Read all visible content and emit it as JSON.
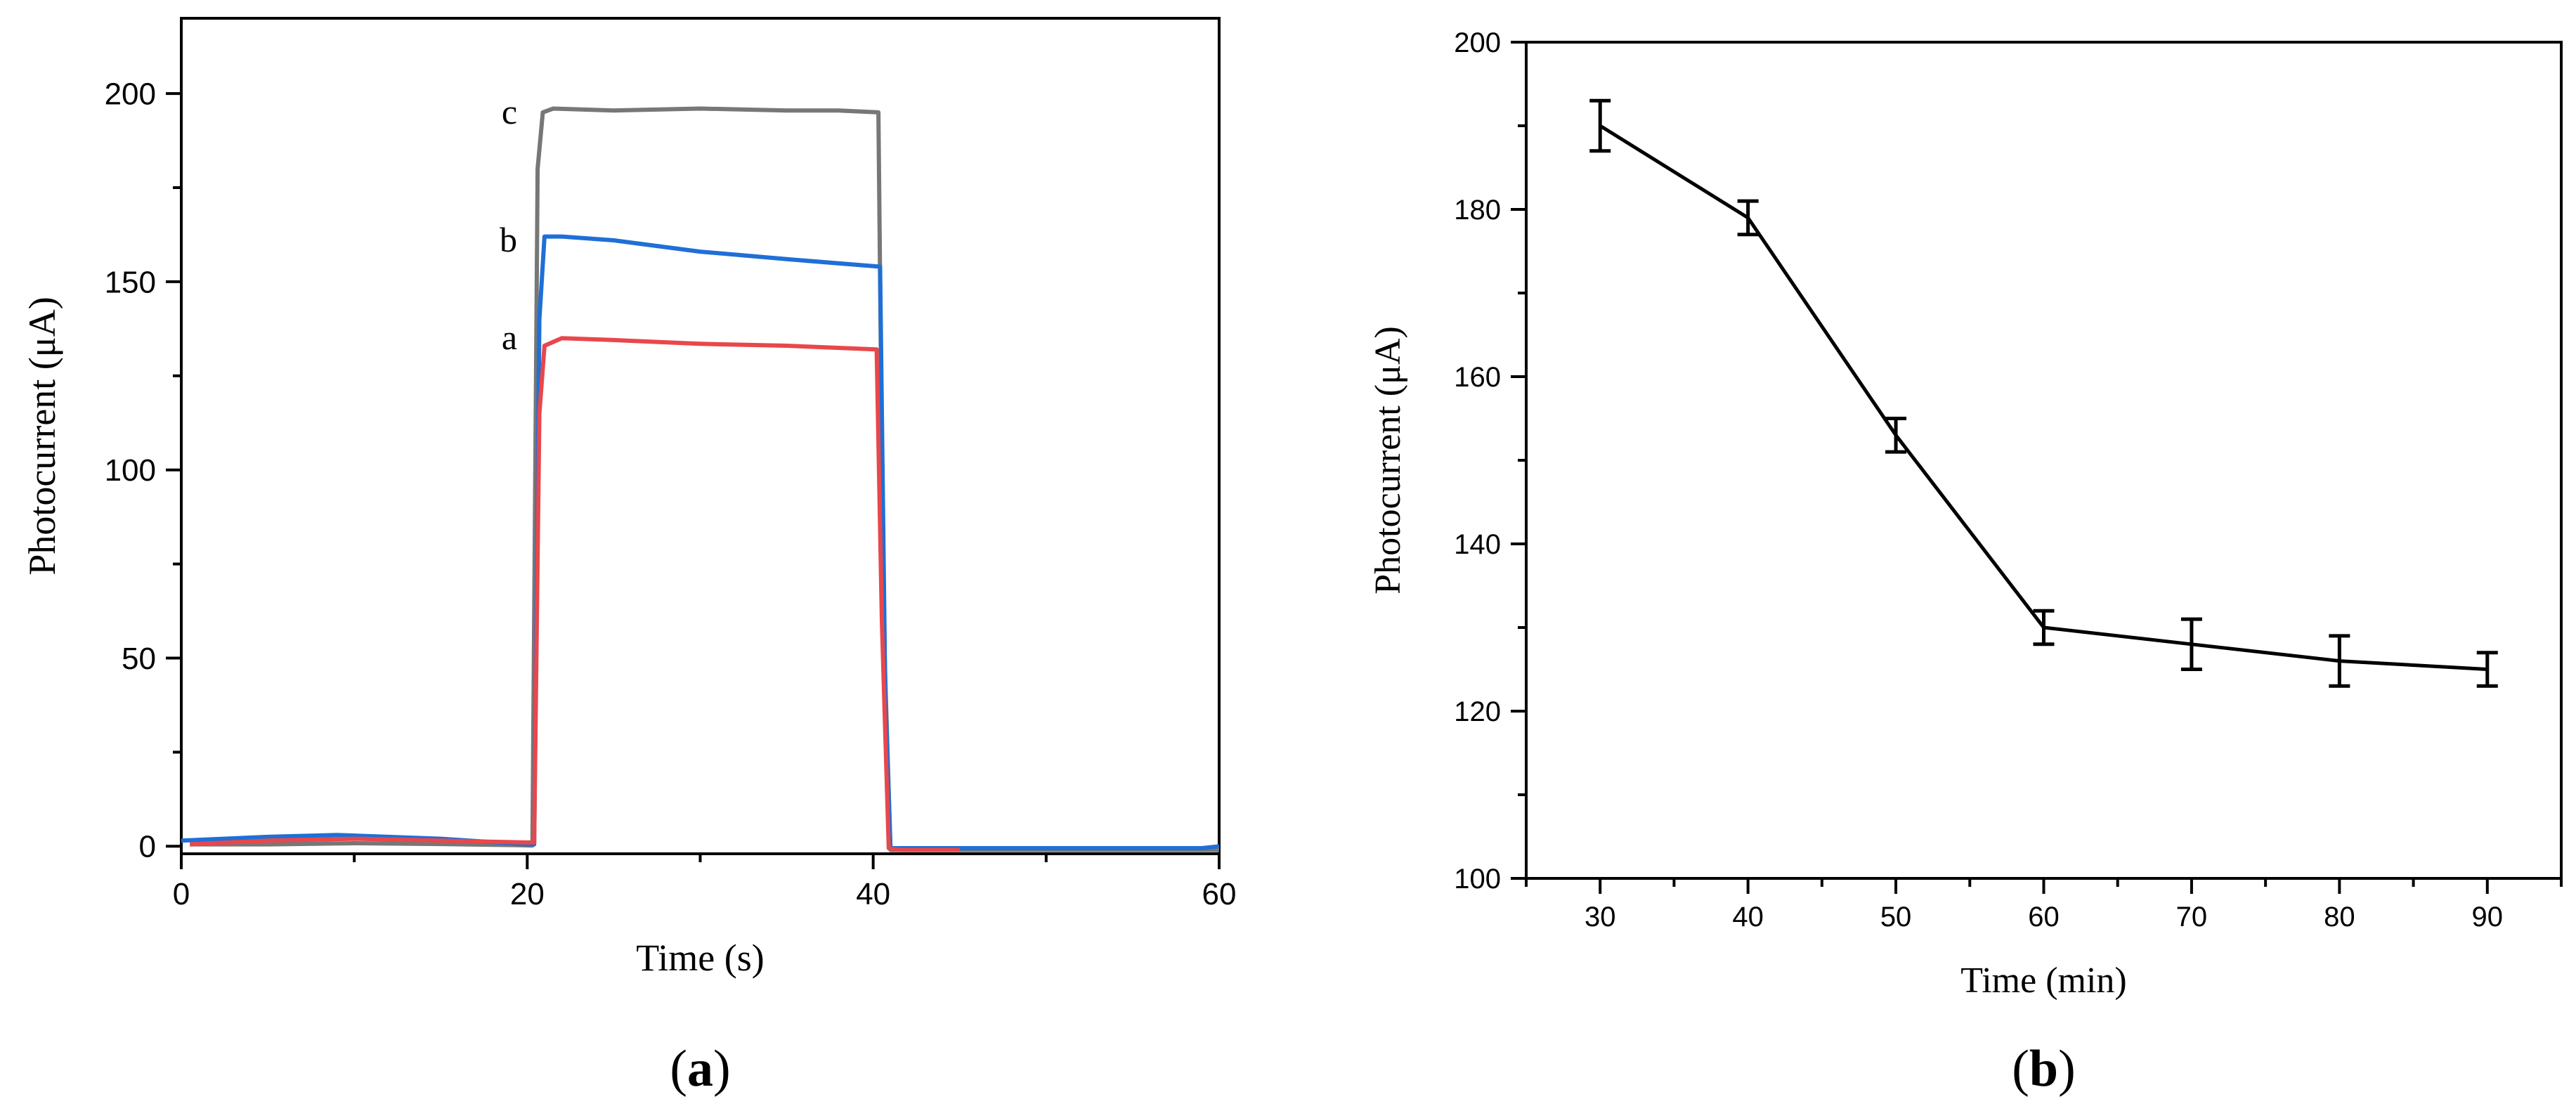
{
  "chart_data": [
    {
      "type": "line",
      "panel_label": "a",
      "xlabel": "Time (s)",
      "ylabel": "Photocurrent (μA)",
      "xlim": [
        0,
        60
      ],
      "ylim": [
        -2,
        220
      ],
      "xticks": [
        0,
        20,
        40,
        60
      ],
      "yticks": [
        0,
        50,
        100,
        150,
        200
      ],
      "grid": false,
      "series": [
        {
          "name": "c",
          "color": "#777777",
          "x": [
            0.5,
            5,
            10,
            15,
            19.5,
            20.3,
            20.6,
            20.9,
            21.5,
            25,
            30,
            35,
            38,
            40.3,
            40.6,
            41,
            45,
            50,
            55,
            60
          ],
          "y": [
            0.5,
            0.5,
            0.8,
            0.6,
            0.3,
            0.2,
            180,
            195,
            196,
            195.5,
            196,
            195.5,
            195.5,
            195,
            60,
            -1,
            -1,
            -1,
            -1,
            -1
          ]
        },
        {
          "name": "b",
          "color": "#1f6fd6",
          "x": [
            0,
            5,
            9,
            15,
            20,
            20.4,
            20.7,
            21,
            22,
            25,
            30,
            35,
            40.4,
            40.7,
            41,
            45,
            50,
            55,
            59,
            60
          ],
          "y": [
            1.5,
            2.5,
            3,
            2,
            0.5,
            0.5,
            140,
            162,
            162,
            161,
            158,
            156,
            154,
            40,
            -0.5,
            -0.5,
            -0.5,
            -0.5,
            -0.5,
            0
          ]
        },
        {
          "name": "a",
          "color": "#e8474b",
          "x": [
            0.5,
            5,
            10,
            15,
            20,
            20.4,
            20.7,
            21,
            22,
            25,
            30,
            35,
            40.2,
            40.5,
            40.9,
            41.5,
            45
          ],
          "y": [
            0.5,
            1.5,
            2,
            1.5,
            1,
            1,
            115,
            133,
            135,
            134.5,
            133.5,
            133,
            132,
            60,
            -0.5,
            -1,
            -1
          ]
        }
      ],
      "annotations": [
        {
          "text": "c",
          "x": 19.5,
          "y": 195
        },
        {
          "text": "b",
          "x": 19.5,
          "y": 161
        },
        {
          "text": "a",
          "x": 19.5,
          "y": 135
        }
      ]
    },
    {
      "type": "line",
      "panel_label": "b",
      "xlabel": "Time (min)",
      "ylabel": "Photocurrent (μA)",
      "xlim": [
        25,
        95
      ],
      "ylim": [
        100,
        200
      ],
      "xticks": [
        30,
        40,
        50,
        60,
        70,
        80,
        90
      ],
      "yticks": [
        100,
        120,
        140,
        160,
        180,
        200
      ],
      "grid": false,
      "series": [
        {
          "color": "#000000",
          "x": [
            30,
            40,
            50,
            60,
            70,
            80,
            90
          ],
          "y": [
            190,
            179,
            153,
            130,
            128,
            126,
            125
          ],
          "error": [
            3,
            2,
            2,
            2,
            3,
            3,
            2
          ]
        }
      ]
    }
  ]
}
